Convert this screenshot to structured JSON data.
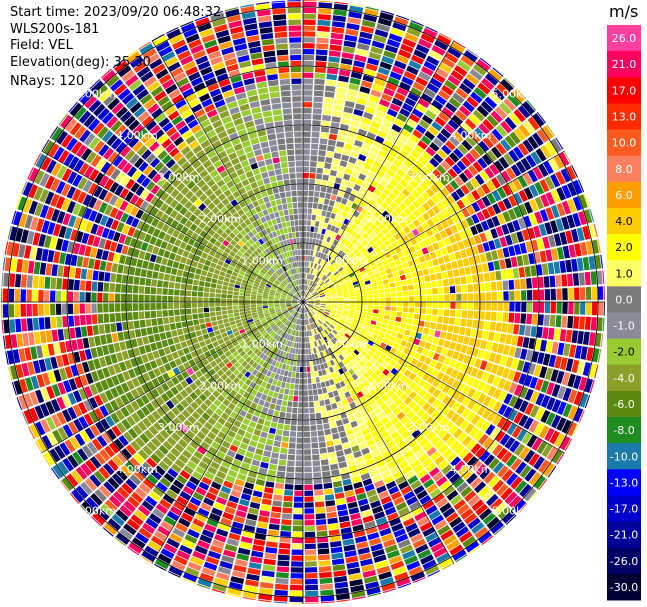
{
  "header": {
    "start_time": "Start time: 2023/09/20 06:48:32",
    "instrument": "WLS200s-181",
    "field": "Field: VEL",
    "elevation": "Elevation(deg): 35.30",
    "nrays": "NRays: 120"
  },
  "colorbar": {
    "unit": "m/s",
    "ticks": [
      "26.0",
      "21.0",
      "17.0",
      "13.0",
      "10.0",
      "8.0",
      "6.0",
      "4.0",
      "2.0",
      "1.0",
      "0.0",
      "-1.0",
      "-2.0",
      "-4.0",
      "-6.0",
      "-8.0",
      "-10.0",
      "-13.0",
      "-17.0",
      "-21.0",
      "-26.0",
      "-30.0"
    ],
    "colors": [
      "#ff3fa0",
      "#ff0060",
      "#ff0000",
      "#ff2a00",
      "#ff5a20",
      "#ff8060",
      "#ffa000",
      "#ffcc00",
      "#ffff00",
      "#ffff66",
      "#7a7a7a",
      "#8a8a99",
      "#99cc33",
      "#8aa028",
      "#5a8a10",
      "#1e8c1e",
      "#1a7aaa",
      "#0000ff",
      "#0000cc",
      "#000099",
      "#000066",
      "#000033"
    ]
  },
  "chart_data": {
    "type": "heatmap",
    "projection": "PPI polar sector plot",
    "field": "VEL",
    "units": "m/s",
    "nrays": 120,
    "elevation_deg": 35.3,
    "range_rings_km": [
      1.0,
      2.0,
      3.0,
      4.0,
      5.0
    ],
    "ring_labels": [
      "1.00km",
      "2.00km",
      "3.00km",
      "4.00km",
      "5.00km"
    ],
    "velocity_pattern": {
      "east_half": "positive, about 1 to 6 m/s near center (yellow/orange)",
      "west_half": "negative, about -1 to -6 m/s near center (green)",
      "zero_line": "approximately north-south (gray band)",
      "beyond_about_3.5km": "noisy, all values between -30 and 26"
    },
    "color_scale_min": -30.0,
    "color_scale_max": 26.0
  }
}
